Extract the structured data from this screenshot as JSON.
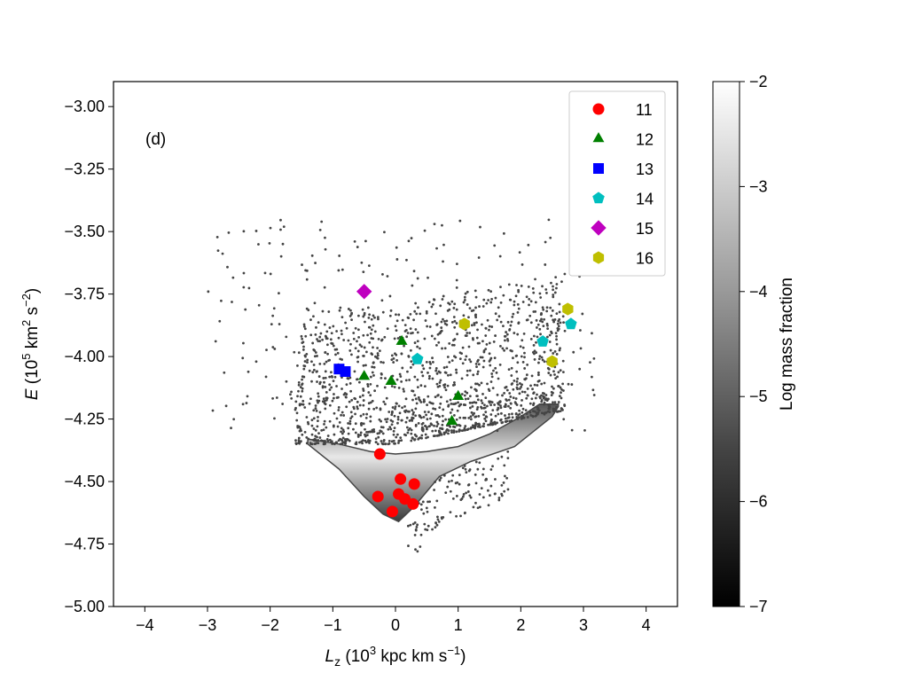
{
  "chart_data": {
    "type": "scatter",
    "panel_label": "(d)",
    "xlabel": {
      "pre": "L",
      "sub": "z",
      "mid": " (10",
      "sup": "3",
      "post": " kpc km s",
      "sup2": "−1",
      "end": ")"
    },
    "ylabel": {
      "pre": "E",
      "mid": " (10",
      "sup": "5",
      "post": " km",
      "sup2": "2",
      "mid2": " s",
      "sup3": "−2",
      "end": ")"
    },
    "xlim": [
      -4.5,
      4.5
    ],
    "ylim": [
      -5.0,
      -2.9
    ],
    "xticks": [
      -4,
      -3,
      -2,
      -1,
      0,
      1,
      2,
      3,
      4
    ],
    "xtick_labels": [
      "−4",
      "−3",
      "−2",
      "−1",
      "0",
      "1",
      "2",
      "3",
      "4"
    ],
    "yticks": [
      -5.0,
      -4.75,
      -4.5,
      -4.25,
      -4.0,
      -3.75,
      -3.5,
      -3.25,
      -3.0
    ],
    "ytick_labels": [
      "−5.00",
      "−4.75",
      "−4.50",
      "−4.25",
      "−4.00",
      "−3.75",
      "−3.50",
      "−3.25",
      "−3.00"
    ],
    "background_density": {
      "description": "gray-scale mass-fraction density of particles",
      "envelope_lower": [
        [
          -1.4,
          -4.35
        ],
        [
          -0.9,
          -4.45
        ],
        [
          -0.5,
          -4.56
        ],
        [
          -0.2,
          -4.63
        ],
        [
          0.05,
          -4.66
        ],
        [
          0.3,
          -4.6
        ],
        [
          0.7,
          -4.48
        ],
        [
          1.2,
          -4.42
        ],
        [
          1.9,
          -4.36
        ],
        [
          2.5,
          -4.24
        ],
        [
          2.6,
          -4.2
        ]
      ],
      "envelope_upper": [
        [
          -1.4,
          -4.33
        ],
        [
          -0.9,
          -4.35
        ],
        [
          -0.4,
          -4.38
        ],
        [
          0.0,
          -4.39
        ],
        [
          0.5,
          -4.38
        ],
        [
          1.0,
          -4.36
        ],
        [
          1.5,
          -4.31
        ],
        [
          2.0,
          -4.24
        ],
        [
          2.3,
          -4.19
        ],
        [
          2.6,
          -4.19
        ]
      ]
    },
    "series": [
      {
        "name": "11",
        "marker": "circle",
        "color": "#ff0000",
        "x": [
          -0.25,
          0.08,
          0.3,
          -0.28,
          0.05,
          0.15,
          0.28,
          -0.05
        ],
        "y": [
          -4.39,
          -4.49,
          -4.51,
          -4.56,
          -4.55,
          -4.57,
          -4.59,
          -4.62
        ]
      },
      {
        "name": "12",
        "marker": "triangle",
        "color": "#008000",
        "x": [
          0.1,
          -0.5,
          -0.07,
          1.0,
          0.9
        ],
        "y": [
          -3.94,
          -4.08,
          -4.1,
          -4.16,
          -4.26
        ]
      },
      {
        "name": "13",
        "marker": "square",
        "color": "#0000ff",
        "x": [
          -0.9,
          -0.8
        ],
        "y": [
          -4.05,
          -4.06
        ]
      },
      {
        "name": "14",
        "marker": "pentagon",
        "color": "#00bfbf",
        "x": [
          0.35,
          2.35,
          2.8
        ],
        "y": [
          -4.01,
          -3.94,
          -3.87
        ]
      },
      {
        "name": "15",
        "marker": "diamond",
        "color": "#bf00bf",
        "x": [
          -0.5
        ],
        "y": [
          -3.74
        ]
      },
      {
        "name": "16",
        "marker": "hexagon",
        "color": "#bfbf00",
        "x": [
          1.1,
          2.75,
          2.5
        ],
        "y": [
          -3.87,
          -3.81,
          -4.02
        ]
      }
    ],
    "colorbar": {
      "label": "Log mass fraction",
      "range": [
        -7,
        -2
      ],
      "ticks": [
        -2,
        -3,
        -4,
        -5,
        -6,
        -7
      ],
      "tick_labels": [
        "−2",
        "−3",
        "−4",
        "−5",
        "−6",
        "−7"
      ]
    }
  }
}
